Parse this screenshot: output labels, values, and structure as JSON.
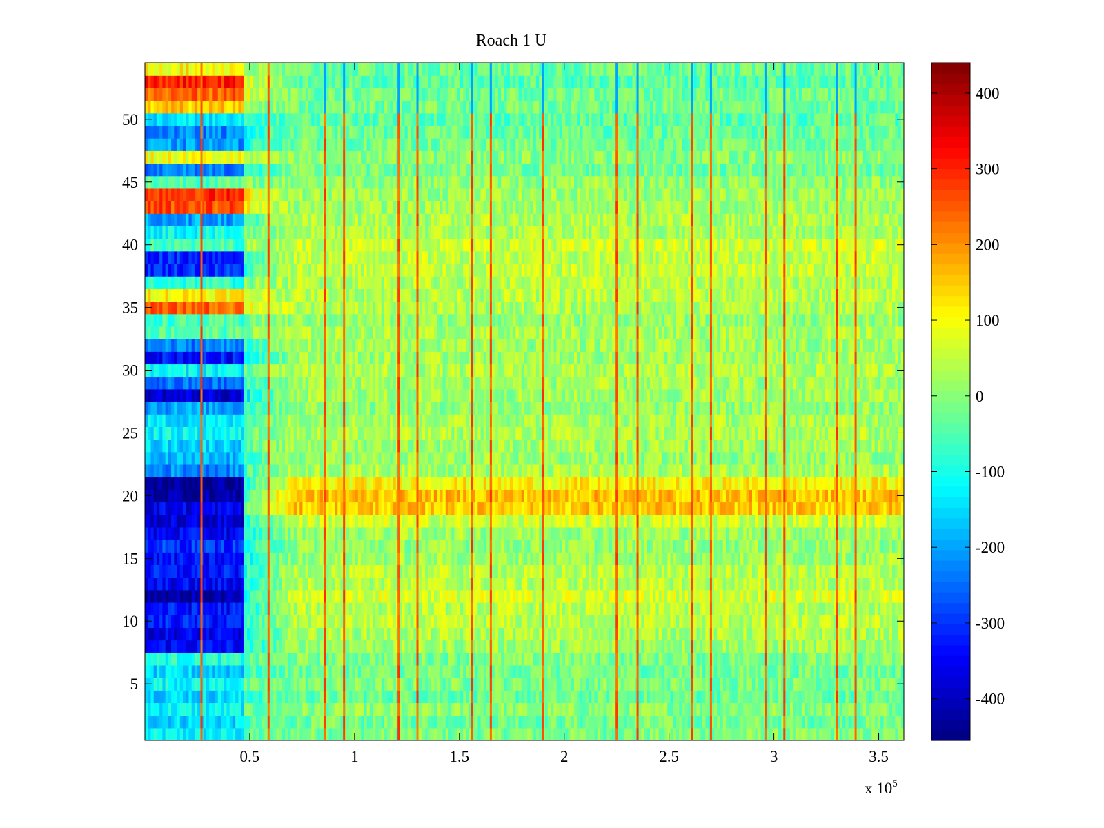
{
  "chart_data": {
    "type": "heatmap",
    "title": "Roach 1 U",
    "xlabel": "",
    "ylabel": "",
    "x_scale_label": "x 10",
    "x_scale_exponent": "5",
    "xlim": [
      0,
      3.62
    ],
    "ylim": [
      0.5,
      54.5
    ],
    "rows": 54,
    "x_ticks": [
      0.5,
      1,
      1.5,
      2,
      2.5,
      3,
      3.5
    ],
    "x_tick_labels": [
      "0.5",
      "1",
      "1.5",
      "2",
      "2.5",
      "3",
      "3.5"
    ],
    "y_ticks": [
      5,
      10,
      15,
      20,
      25,
      30,
      35,
      40,
      45,
      50
    ],
    "y_tick_labels": [
      "5",
      "10",
      "15",
      "20",
      "25",
      "30",
      "35",
      "40",
      "45",
      "50"
    ],
    "colormap": "jet",
    "clim": [
      -455,
      440
    ],
    "colorbar_ticks": [
      -400,
      -300,
      -200,
      -100,
      0,
      100,
      200,
      300,
      400
    ],
    "colorbar_tick_labels": [
      "-400",
      "-300",
      "-200",
      "-100",
      "0",
      "100",
      "200",
      "300",
      "400"
    ],
    "early_segment_end_x": 0.48,
    "early_row_values": [
      -130,
      -150,
      -120,
      -150,
      -110,
      -160,
      -90,
      -340,
      -360,
      -320,
      -330,
      -420,
      -350,
      -330,
      -340,
      -300,
      -350,
      -380,
      -360,
      -420,
      -440,
      -220,
      -190,
      -150,
      -120,
      -140,
      -200,
      -380,
      -250,
      -120,
      -330,
      -230,
      -40,
      -60,
      240,
      120,
      -80,
      -300,
      -310,
      -60,
      -110,
      -200,
      260,
      290,
      -40,
      -230,
      90,
      -210,
      -230,
      -150,
      150,
      240,
      300,
      110
    ],
    "late_row_values": [
      -10,
      -20,
      0,
      -30,
      -10,
      -20,
      -10,
      20,
      30,
      40,
      40,
      70,
      40,
      40,
      20,
      10,
      20,
      60,
      150,
      160,
      110,
      30,
      10,
      20,
      30,
      30,
      10,
      20,
      20,
      30,
      20,
      20,
      30,
      10,
      30,
      40,
      40,
      50,
      50,
      60,
      30,
      30,
      20,
      20,
      10,
      -20,
      0,
      -20,
      -30,
      -40,
      -20,
      -20,
      -40,
      -30
    ],
    "spike_columns_x": [
      0.27,
      0.59,
      0.86,
      0.95,
      1.21,
      1.3,
      1.56,
      1.65,
      1.9,
      2.25,
      2.35,
      2.61,
      2.7,
      2.96,
      3.05,
      3.3,
      3.39
    ],
    "spike_value": 250,
    "dip_columns_x": [
      0.86,
      0.95,
      1.21,
      1.3,
      1.56,
      1.65,
      1.9,
      2.25,
      2.35,
      2.61,
      2.7,
      2.96,
      3.05,
      3.3,
      3.39
    ],
    "dip_rows": [
      51,
      52,
      53,
      54
    ],
    "dip_value": -200
  }
}
